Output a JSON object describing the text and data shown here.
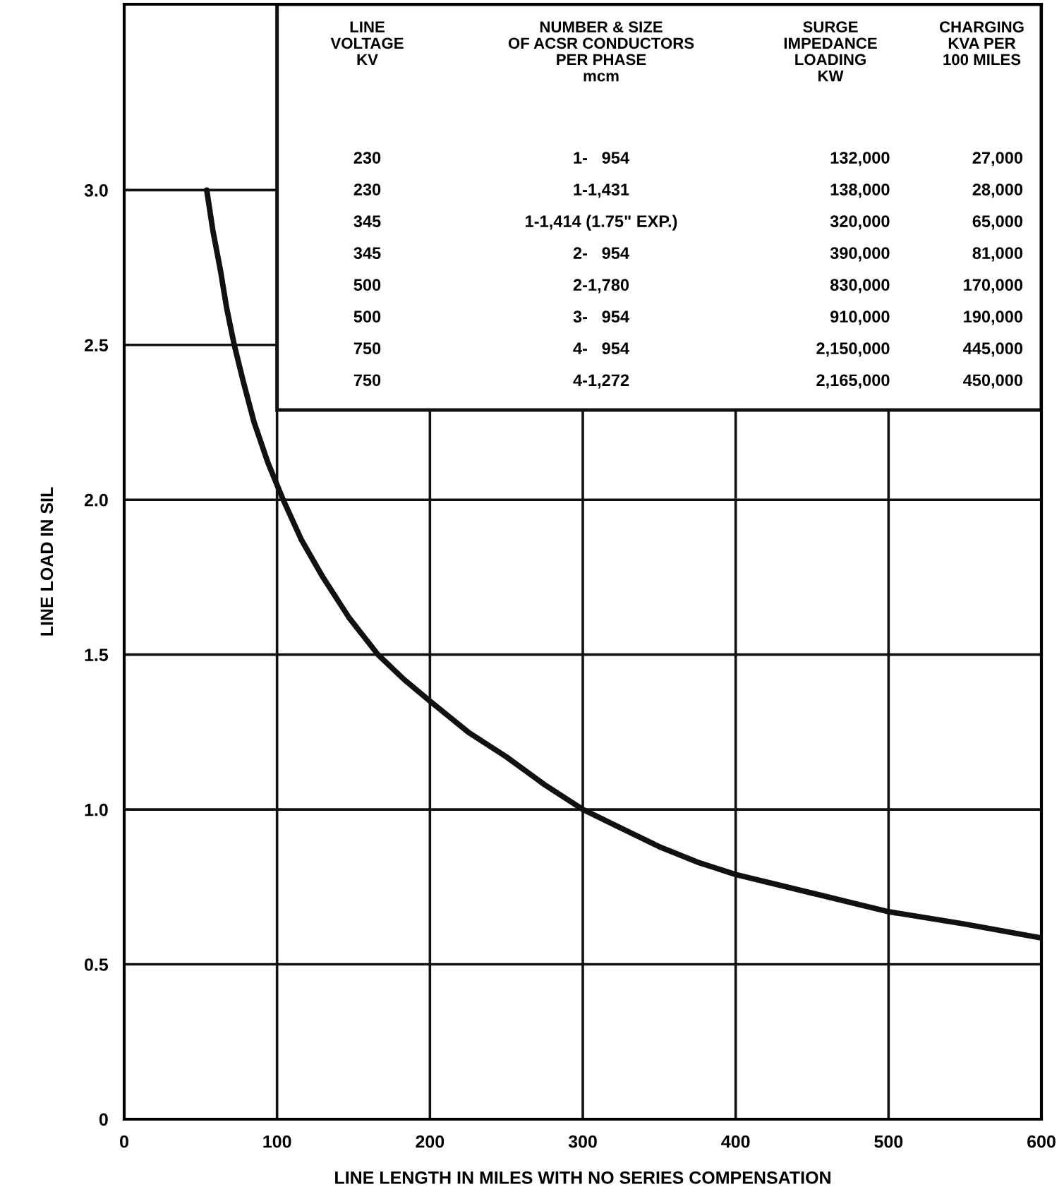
{
  "chart_data": {
    "type": "line",
    "xlabel": "LINE LENGTH IN MILES WITH NO SERIES COMPENSATION",
    "ylabel": "LINE LOAD IN SIL",
    "x": [
      54,
      58,
      63,
      67,
      72,
      78,
      85,
      94,
      104,
      116,
      130,
      147,
      166,
      183,
      200,
      225,
      250,
      275,
      300,
      325,
      350,
      375,
      400,
      450,
      500,
      550,
      600
    ],
    "series": [
      {
        "color": "#111111",
        "values": [
          3.0,
          2.87,
          2.74,
          2.62,
          2.5,
          2.38,
          2.25,
          2.12,
          2.0,
          1.87,
          1.75,
          1.62,
          1.5,
          1.42,
          1.35,
          1.25,
          1.17,
          1.08,
          1.0,
          0.94,
          0.88,
          0.83,
          0.79,
          0.73,
          0.67,
          0.63,
          0.585
        ]
      }
    ],
    "xlim": [
      0,
      600
    ],
    "ylim": [
      0,
      3.6
    ],
    "xticks": [
      0,
      100,
      200,
      300,
      400,
      500,
      600
    ],
    "yticks": [
      0,
      0.5,
      {
        "value": 1,
        "label": "1.0"
      },
      1.5,
      {
        "value": 2,
        "label": "2.0"
      },
      2.5,
      {
        "value": 3,
        "label": "3.0"
      }
    ],
    "grid": true,
    "marker": "none",
    "line_style": "solid",
    "annotations": [
      "LINE\nVOLTAGE\nKV",
      "NUMBER & SIZE\nOF ACSR CONDUCTORS\nPER PHASE\nmcm",
      "SURGE\nIMPEDANCE\nLOADING\nKW",
      "CHARGING\nKVA PER\n100 MILES",
      "230",
      "1-   954",
      "132,000",
      "27,000",
      "230",
      "1-1,431",
      "138,000",
      "28,000",
      "345",
      "1-1,414 (1.75\" EXP.)",
      "320,000",
      "65,000",
      "345",
      "2-   954",
      "390,000",
      "81,000",
      "500",
      "2-1,780",
      "830,000",
      "170,000",
      "500",
      "3-   954",
      "910,000",
      "190,000",
      "750",
      "4-   954",
      "2,150,000",
      "445,000",
      "750",
      "4-1,272",
      "2,165,000",
      "450,000"
    ]
  }
}
